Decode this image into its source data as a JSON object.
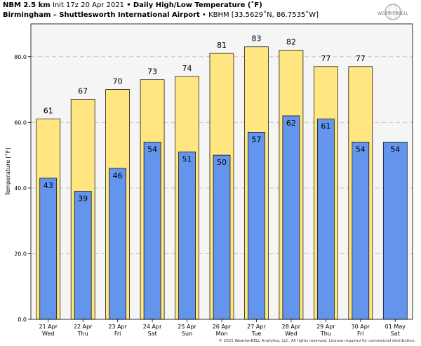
{
  "header": {
    "model": "NBM 2.5 km",
    "init": "Init 17z 20 Apr 2021",
    "bullet": "•",
    "product": "Daily High/Low Temperature (˚F)",
    "station": "Birmingham – Shuttlesworth International Airport",
    "station_id": "• KBHM [33.5629˚N, 86.7535˚W]"
  },
  "logo": {
    "text": "WEATHERBELL",
    "icon": "weatherbell-globe-logo"
  },
  "copyright": "© 2021 WeatherBELL Analytics, LLC. All rights reserved. License required for commercial distribution.",
  "colors": {
    "high": "#ffe680",
    "low": "#6495ed",
    "plot_bg": "#f5f5f5",
    "grid": "#c8c8c8"
  },
  "chart_data": {
    "type": "bar",
    "title": "Daily High/Low Temperature (˚F)",
    "xlabel": "",
    "ylabel": "Temperature [˚F]",
    "ylim": [
      0,
      90
    ],
    "yticks": [
      "0.0",
      "20.0",
      "40.0",
      "60.0",
      "80.0"
    ],
    "grid": true,
    "categories": [
      [
        "21 Apr",
        "Wed"
      ],
      [
        "22 Apr",
        "Thu"
      ],
      [
        "23 Apr",
        "Fri"
      ],
      [
        "24 Apr",
        "Sat"
      ],
      [
        "25 Apr",
        "Sun"
      ],
      [
        "26 Apr",
        "Mon"
      ],
      [
        "27 Apr",
        "Tue"
      ],
      [
        "28 Apr",
        "Wed"
      ],
      [
        "29 Apr",
        "Thu"
      ],
      [
        "30 Apr",
        "Fri"
      ],
      [
        "01 May",
        "Sat"
      ]
    ],
    "series": [
      {
        "key": "high",
        "values": [
          61,
          67,
          70,
          73,
          74,
          81,
          83,
          82,
          77,
          77,
          null
        ]
      },
      {
        "key": "low",
        "values": [
          43,
          39,
          46,
          54,
          51,
          50,
          57,
          62,
          61,
          54,
          54
        ]
      }
    ]
  }
}
